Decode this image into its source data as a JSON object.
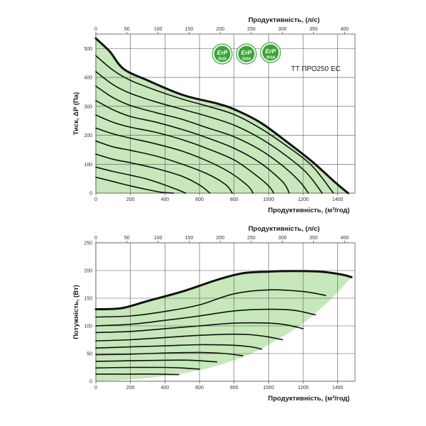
{
  "colors": {
    "fill": "#c7e8bb",
    "curve": "#111111",
    "grid": "#555555",
    "badge": "#3aa535"
  },
  "chart_data": [
    {
      "type": "area",
      "model_label": "TT ПРО250 EC",
      "ylabel": "Тиск, ΔP (Па)",
      "xlabel_bottom": "Продуктивність, (м³/год)",
      "xlabel_top": "Продуктивність, (л/с)",
      "x_ticks_bottom": [
        "0",
        "200",
        "400",
        "600",
        "800",
        "1000",
        "1200",
        "1400"
      ],
      "x_ticks_top": [
        "0",
        "50",
        "100",
        "150",
        "200",
        "250",
        "300",
        "350",
        "400"
      ],
      "y_ticks": [
        "0",
        "100",
        "200",
        "300",
        "400",
        "500"
      ],
      "xlim": [
        0,
        1500
      ],
      "ylim": [
        0,
        550
      ],
      "x2lim": [
        0,
        416.7
      ],
      "grid": true,
      "badges": [
        {
          "text": "ErP",
          "year": "2015"
        },
        {
          "text": "ErP",
          "year": "2016"
        },
        {
          "text": "ErP",
          "year": "2018"
        }
      ],
      "envelope": [
        [
          0,
          535
        ],
        [
          80,
          490
        ],
        [
          160,
          430
        ],
        [
          300,
          390
        ],
        [
          500,
          340
        ],
        [
          700,
          310
        ],
        [
          800,
          290
        ],
        [
          950,
          245
        ],
        [
          1100,
          180
        ],
        [
          1250,
          110
        ],
        [
          1380,
          40
        ],
        [
          1460,
          0
        ]
      ],
      "series": [
        {
          "values": [
            [
              0,
              475
            ],
            [
              100,
              425
            ],
            [
              200,
              390
            ],
            [
              350,
              355
            ],
            [
              500,
              325
            ],
            [
              650,
              300
            ],
            [
              800,
              272
            ],
            [
              950,
              225
            ],
            [
              1100,
              165
            ],
            [
              1250,
              95
            ],
            [
              1375,
              0
            ]
          ]
        },
        {
          "values": [
            [
              0,
              420
            ],
            [
              100,
              375
            ],
            [
              200,
              345
            ],
            [
              350,
              315
            ],
            [
              500,
              290
            ],
            [
              650,
              265
            ],
            [
              800,
              235
            ],
            [
              950,
              190
            ],
            [
              1100,
              130
            ],
            [
              1220,
              70
            ],
            [
              1310,
              0
            ]
          ]
        },
        {
          "values": [
            [
              0,
              370
            ],
            [
              100,
              330
            ],
            [
              200,
              303
            ],
            [
              350,
              278
            ],
            [
              500,
              255
            ],
            [
              650,
              225
            ],
            [
              800,
              195
            ],
            [
              950,
              150
            ],
            [
              1080,
              95
            ],
            [
              1180,
              40
            ],
            [
              1230,
              0
            ]
          ]
        },
        {
          "values": [
            [
              0,
              320
            ],
            [
              100,
              288
            ],
            [
              200,
              265
            ],
            [
              350,
              245
            ],
            [
              500,
              220
            ],
            [
              650,
              190
            ],
            [
              800,
              155
            ],
            [
              950,
              105
            ],
            [
              1080,
              40
            ],
            [
              1120,
              0
            ]
          ]
        },
        {
          "values": [
            [
              0,
              270
            ],
            [
              100,
              245
            ],
            [
              200,
              228
            ],
            [
              350,
              210
            ],
            [
              500,
              185
            ],
            [
              650,
              153
            ],
            [
              800,
              115
            ],
            [
              920,
              65
            ],
            [
              1000,
              25
            ],
            [
              1030,
              0
            ]
          ]
        },
        {
          "values": [
            [
              0,
              225
            ],
            [
              100,
              205
            ],
            [
              200,
              190
            ],
            [
              350,
              170
            ],
            [
              500,
              145
            ],
            [
              650,
              110
            ],
            [
              780,
              70
            ],
            [
              880,
              25
            ],
            [
              910,
              0
            ]
          ]
        },
        {
          "values": [
            [
              0,
              180
            ],
            [
              100,
              160
            ],
            [
              200,
              148
            ],
            [
              350,
              128
            ],
            [
              500,
              100
            ],
            [
              650,
              65
            ],
            [
              750,
              30
            ],
            [
              790,
              0
            ]
          ]
        },
        {
          "values": [
            [
              0,
              135
            ],
            [
              100,
              117
            ],
            [
              200,
              105
            ],
            [
              350,
              85
            ],
            [
              500,
              58
            ],
            [
              600,
              28
            ],
            [
              660,
              0
            ]
          ]
        },
        {
          "values": [
            [
              0,
              90
            ],
            [
              100,
              75
            ],
            [
              200,
              62
            ],
            [
              300,
              48
            ],
            [
              400,
              28
            ],
            [
              480,
              10
            ],
            [
              520,
              0
            ]
          ]
        },
        {
          "values": [
            [
              0,
              55
            ],
            [
              100,
              40
            ],
            [
              200,
              25
            ],
            [
              300,
              12
            ],
            [
              380,
              3
            ],
            [
              450,
              0
            ]
          ]
        }
      ]
    },
    {
      "type": "area",
      "ylabel": "Потужність, (Вт)",
      "xlabel_bottom": "Продуктивність, (м³/год)",
      "xlabel_top": "Продуктивність, (л/с)",
      "x_ticks_bottom": [
        "0",
        "200",
        "400",
        "600",
        "800",
        "1000",
        "1200",
        "1400"
      ],
      "x_ticks_top": [
        "0",
        "50",
        "100",
        "150",
        "200",
        "250",
        "300",
        "350",
        "400"
      ],
      "y_ticks": [
        "0",
        "50",
        "100",
        "150",
        "200",
        "250"
      ],
      "xlim": [
        0,
        1500
      ],
      "ylim": [
        0,
        250
      ],
      "x2lim": [
        0,
        416.7
      ],
      "grid": true,
      "envelope": [
        [
          0,
          130
        ],
        [
          150,
          132
        ],
        [
          300,
          145
        ],
        [
          500,
          162
        ],
        [
          700,
          183
        ],
        [
          850,
          195
        ],
        [
          1000,
          198
        ],
        [
          1150,
          199
        ],
        [
          1300,
          198
        ],
        [
          1420,
          193
        ],
        [
          1480,
          188
        ]
      ],
      "lower_boundary": [
        [
          1480,
          188
        ],
        [
          1350,
          145
        ],
        [
          1200,
          105
        ],
        [
          1050,
          75
        ],
        [
          900,
          50
        ],
        [
          700,
          28
        ],
        [
          500,
          14
        ],
        [
          300,
          6
        ],
        [
          150,
          2
        ],
        [
          0,
          0
        ]
      ],
      "series": [
        {
          "values": [
            [
              0,
              116
            ],
            [
              200,
              118
            ],
            [
              400,
              126
            ],
            [
              600,
              138
            ],
            [
              800,
              158
            ],
            [
              1000,
              165
            ],
            [
              1200,
              162
            ],
            [
              1330,
              155
            ]
          ]
        },
        {
          "values": [
            [
              0,
              100
            ],
            [
              200,
              103
            ],
            [
              400,
              110
            ],
            [
              600,
              118
            ],
            [
              800,
              127
            ],
            [
              1000,
              130
            ],
            [
              1150,
              128
            ],
            [
              1270,
              120
            ]
          ]
        },
        {
          "values": [
            [
              0,
              88
            ],
            [
              200,
              90
            ],
            [
              400,
              95
            ],
            [
              600,
              100
            ],
            [
              800,
              105
            ],
            [
              1000,
              105
            ],
            [
              1100,
              102
            ],
            [
              1200,
              95
            ]
          ]
        },
        {
          "values": [
            [
              0,
              73
            ],
            [
              200,
              75
            ],
            [
              400,
              79
            ],
            [
              600,
              83
            ],
            [
              800,
              85
            ],
            [
              900,
              84
            ],
            [
              1000,
              80
            ],
            [
              1080,
              75
            ]
          ]
        },
        {
          "values": [
            [
              0,
              60
            ],
            [
              200,
              62
            ],
            [
              400,
              64
            ],
            [
              600,
              66
            ],
            [
              800,
              65
            ],
            [
              900,
              62
            ],
            [
              960,
              58
            ]
          ]
        },
        {
          "values": [
            [
              0,
              48
            ],
            [
              200,
              49
            ],
            [
              400,
              51
            ],
            [
              600,
              52
            ],
            [
              750,
              50
            ],
            [
              850,
              46
            ]
          ]
        },
        {
          "values": [
            [
              0,
              36
            ],
            [
              200,
              37
            ],
            [
              400,
              38
            ],
            [
              550,
              38
            ],
            [
              700,
              35
            ]
          ]
        },
        {
          "values": [
            [
              0,
              24
            ],
            [
              200,
              25
            ],
            [
              400,
              25
            ],
            [
              500,
              24
            ],
            [
              600,
              22
            ]
          ]
        },
        {
          "values": [
            [
              0,
              13
            ],
            [
              200,
              13
            ],
            [
              350,
              13
            ],
            [
              480,
              12
            ]
          ]
        }
      ]
    }
  ]
}
